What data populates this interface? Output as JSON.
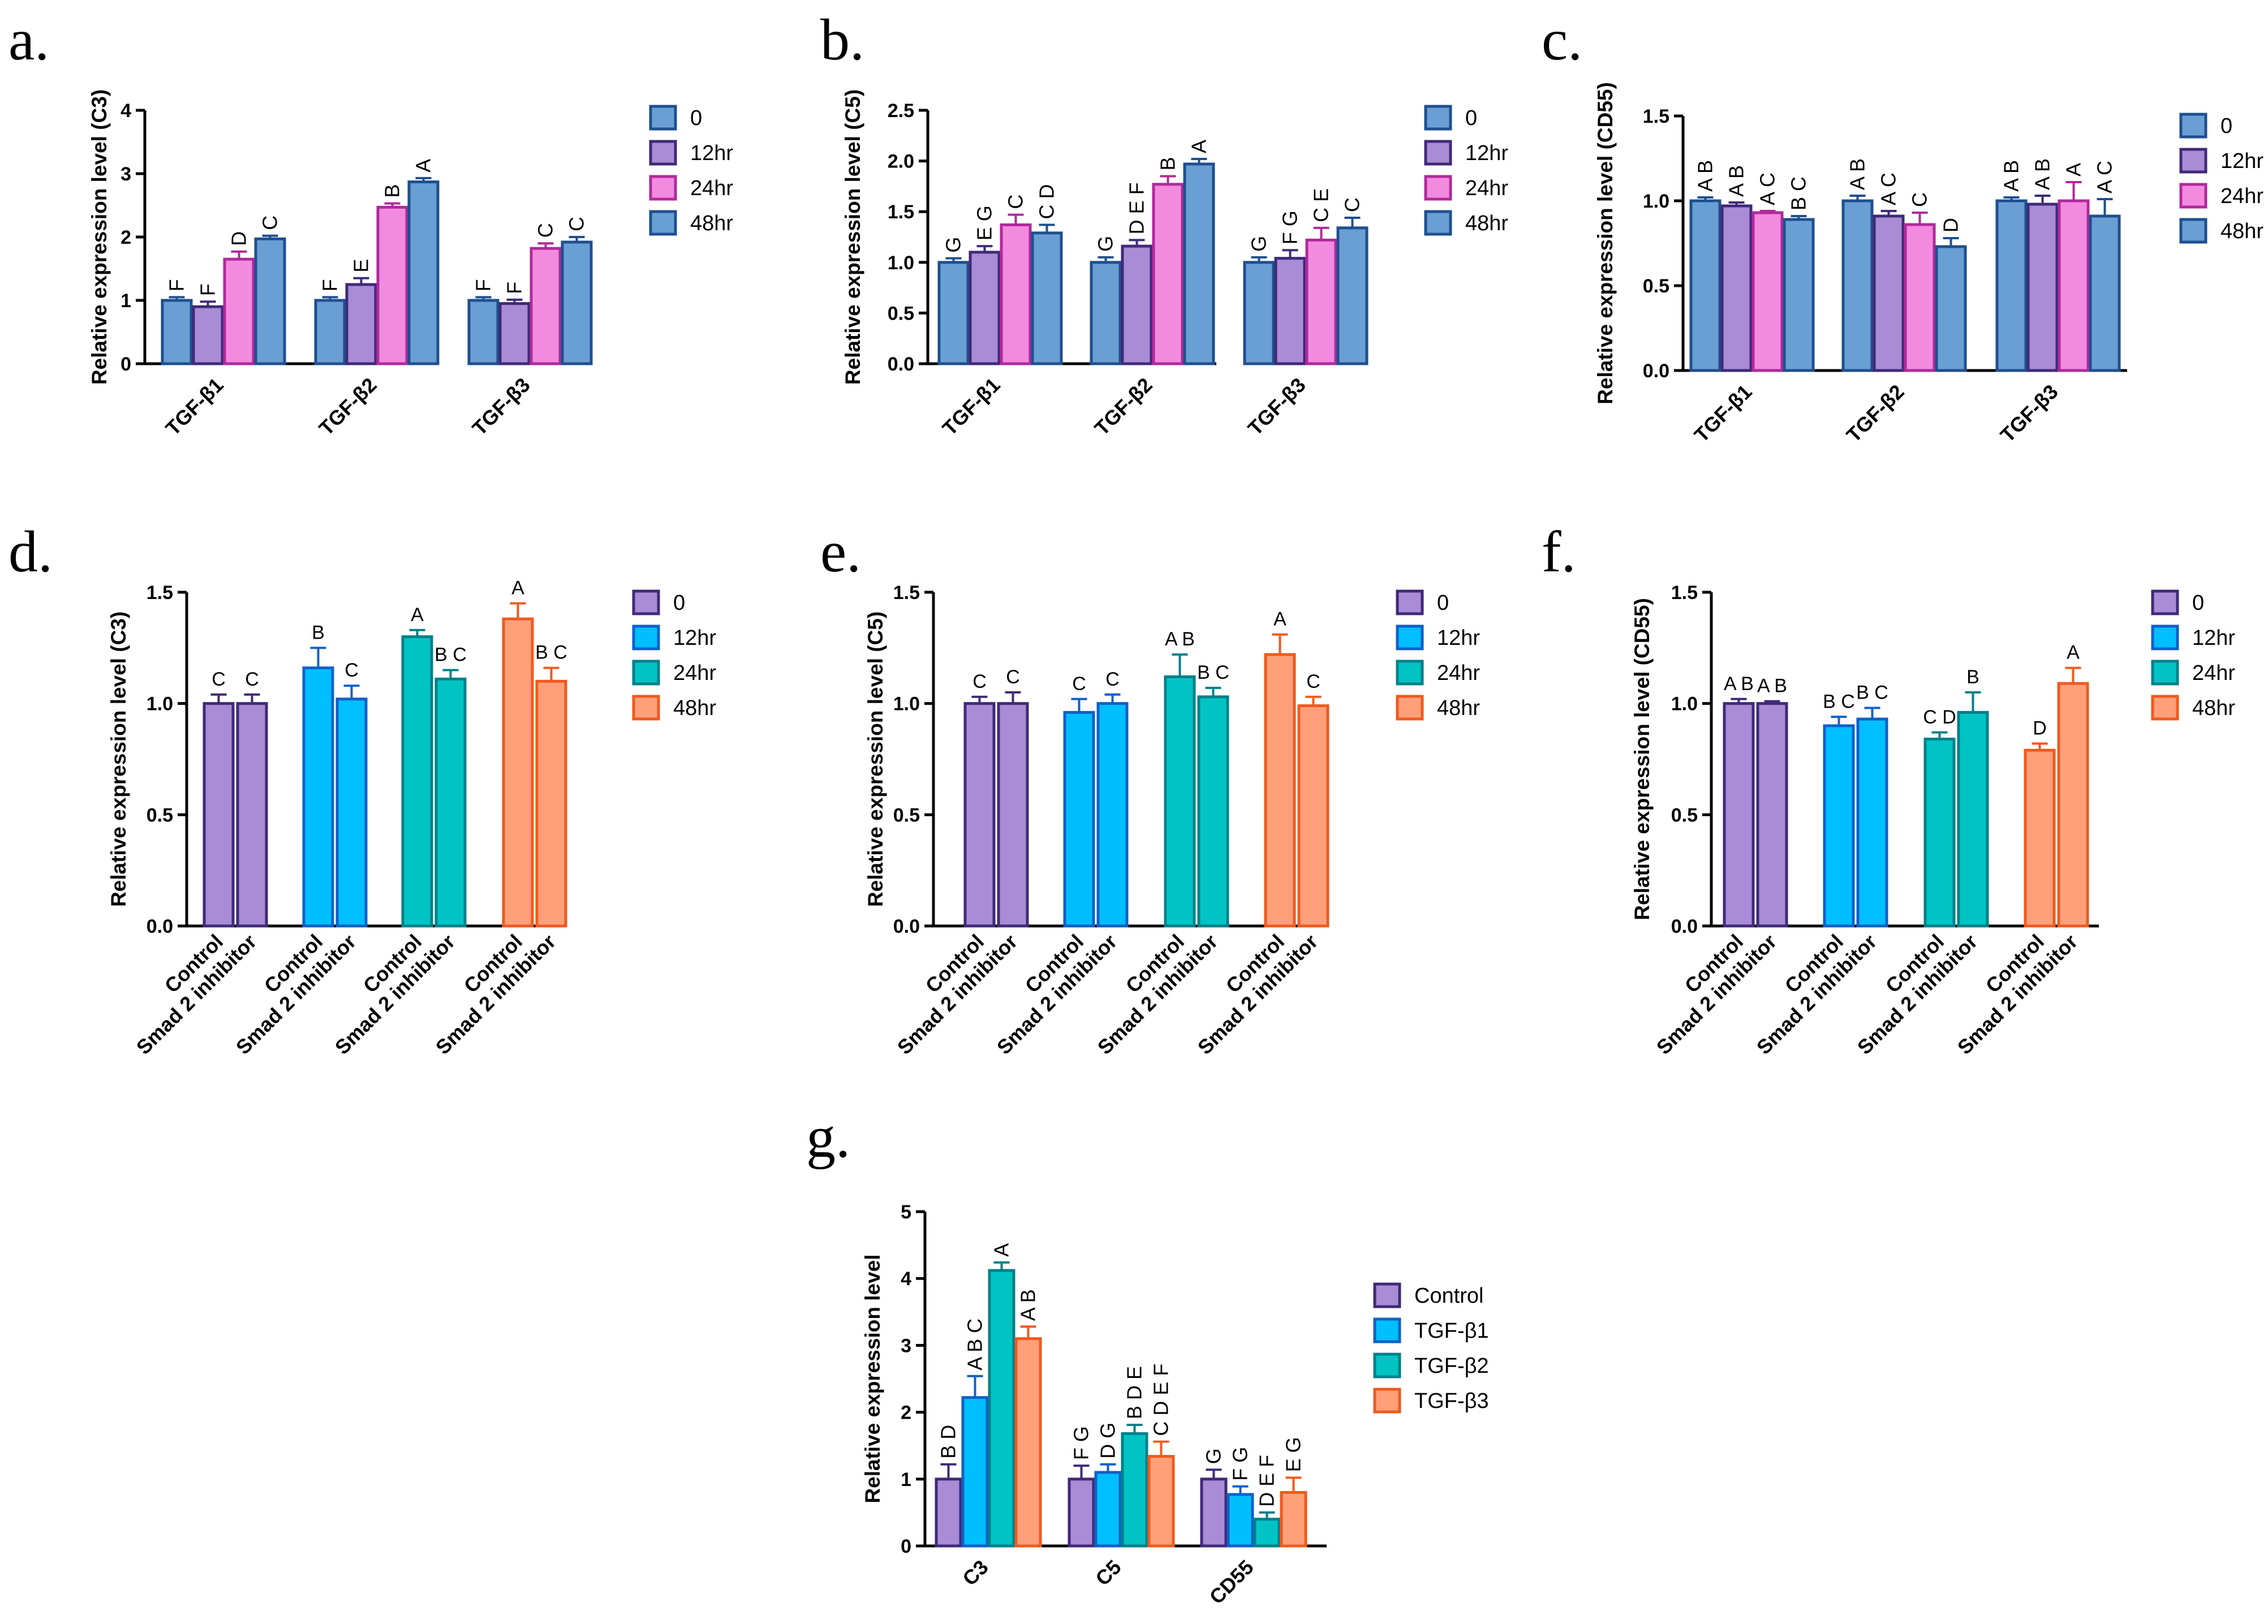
{
  "chart_data": [
    {
      "id": "a",
      "panel_label": "a.",
      "type": "bar",
      "ylabel": "Relative expression level (C3)",
      "ylim": [
        0,
        4
      ],
      "yticks": [
        "0",
        "1",
        "2",
        "3",
        "4"
      ],
      "categories": [
        "TGF-β1",
        "TGF-β2",
        "TGF-β3"
      ],
      "series": [
        {
          "name": "0",
          "color": "#6a9fd4",
          "edge": "#1e4f8f",
          "values": [
            1.0,
            1.0,
            1.0
          ],
          "errors": [
            0.05,
            0.05,
            0.05
          ],
          "labels": [
            "F",
            "F",
            "F"
          ]
        },
        {
          "name": "12hr",
          "color": "#a98bd6",
          "edge": "#3f2a78",
          "values": [
            0.9,
            1.25,
            0.95
          ],
          "errors": [
            0.08,
            0.1,
            0.06
          ],
          "labels": [
            "F",
            "E",
            "F"
          ]
        },
        {
          "name": "24hr",
          "color": "#f28be0",
          "edge": "#b02a9a",
          "values": [
            1.65,
            2.47,
            1.82
          ],
          "errors": [
            0.12,
            0.06,
            0.08
          ],
          "labels": [
            "D",
            "B",
            "C"
          ]
        },
        {
          "name": "48hr",
          "color": "#6a9fd4",
          "edge": "#1e4f8f",
          "values": [
            1.97,
            2.87,
            1.92
          ],
          "errors": [
            0.05,
            0.06,
            0.08
          ],
          "labels": [
            "C",
            "A",
            "C"
          ]
        }
      ]
    },
    {
      "id": "b",
      "panel_label": "b.",
      "type": "bar",
      "ylabel": "Relative expression level (C5)",
      "ylim": [
        0,
        2.5
      ],
      "yticks": [
        "0.0",
        "0.5",
        "1.0",
        "1.5",
        "2.0",
        "2.5"
      ],
      "categories": [
        "TGF-β1",
        "TGF-β2",
        "TGF-β3"
      ],
      "series": [
        {
          "name": "0",
          "color": "#6a9fd4",
          "edge": "#1e4f8f",
          "values": [
            1.0,
            1.0,
            1.0
          ],
          "errors": [
            0.04,
            0.05,
            0.05
          ],
          "labels": [
            "G",
            "G",
            "G"
          ]
        },
        {
          "name": "12hr",
          "color": "#a98bd6",
          "edge": "#3f2a78",
          "values": [
            1.1,
            1.16,
            1.04
          ],
          "errors": [
            0.06,
            0.06,
            0.08
          ],
          "labels": [
            "E G",
            "D E F",
            "F G"
          ]
        },
        {
          "name": "24hr",
          "color": "#f28be0",
          "edge": "#b02a9a",
          "values": [
            1.37,
            1.77,
            1.22
          ],
          "errors": [
            0.1,
            0.08,
            0.12
          ],
          "labels": [
            "C",
            "B",
            "C E"
          ]
        },
        {
          "name": "48hr",
          "color": "#6a9fd4",
          "edge": "#1e4f8f",
          "values": [
            1.29,
            1.97,
            1.34
          ],
          "errors": [
            0.08,
            0.05,
            0.1
          ],
          "labels": [
            "C D",
            "A",
            "C"
          ]
        }
      ]
    },
    {
      "id": "c",
      "panel_label": "c.",
      "type": "bar",
      "ylabel": "Relative expression level (CD55)",
      "ylim": [
        0,
        1.5
      ],
      "yticks": [
        "0.0",
        "0.5",
        "1.0",
        "1.5"
      ],
      "categories": [
        "TGF-β1",
        "TGF-β2",
        "TGF-β3"
      ],
      "series": [
        {
          "name": "0",
          "color": "#6a9fd4",
          "edge": "#1e4f8f",
          "values": [
            1.0,
            1.0,
            1.0
          ],
          "errors": [
            0.02,
            0.03,
            0.02
          ],
          "labels": [
            "A B",
            "A B",
            "A B"
          ]
        },
        {
          "name": "12hr",
          "color": "#a98bd6",
          "edge": "#3f2a78",
          "values": [
            0.97,
            0.91,
            0.98
          ],
          "errors": [
            0.02,
            0.03,
            0.05
          ],
          "labels": [
            "A B",
            "A C",
            "A B"
          ]
        },
        {
          "name": "24hr",
          "color": "#f28be0",
          "edge": "#b02a9a",
          "values": [
            0.93,
            0.86,
            1.0
          ],
          "errors": [
            0.01,
            0.07,
            0.11
          ],
          "labels": [
            "A C",
            "C",
            "A"
          ]
        },
        {
          "name": "48hr",
          "color": "#6a9fd4",
          "edge": "#1e4f8f",
          "values": [
            0.89,
            0.73,
            0.91
          ],
          "errors": [
            0.02,
            0.05,
            0.1
          ],
          "labels": [
            "B C",
            "D",
            "A C"
          ]
        }
      ]
    },
    {
      "id": "d",
      "panel_label": "d.",
      "type": "bar",
      "ylabel": "Relative expression level (C3)",
      "ylim": [
        0,
        1.5
      ],
      "yticks": [
        "0.0",
        "0.5",
        "1.0",
        "1.5"
      ],
      "legend": [
        "0",
        "12hr",
        "24hr",
        "48hr"
      ],
      "groups": [
        {
          "color": "#a98bd6",
          "edge": "#3f2a78",
          "categories": [
            "Control",
            "Smad 2 inhibitor"
          ],
          "values": [
            1.0,
            1.0
          ],
          "errors": [
            0.04,
            0.04
          ],
          "labels": [
            "C",
            "C"
          ]
        },
        {
          "color": "#00bfff",
          "edge": "#1060c8",
          "categories": [
            "Control",
            "Smad 2 inhibitor"
          ],
          "values": [
            1.16,
            1.02
          ],
          "errors": [
            0.09,
            0.06
          ],
          "labels": [
            "B",
            "C"
          ]
        },
        {
          "color": "#00c4c4",
          "edge": "#00808a",
          "categories": [
            "Control",
            "Smad 2 inhibitor"
          ],
          "values": [
            1.3,
            1.11
          ],
          "errors": [
            0.03,
            0.04
          ],
          "labels": [
            "A",
            "B C"
          ]
        },
        {
          "color": "#ffa07a",
          "edge": "#f05a1e",
          "categories": [
            "Control",
            "Smad 2 inhibitor"
          ],
          "values": [
            1.38,
            1.1
          ],
          "errors": [
            0.07,
            0.06
          ],
          "labels": [
            "A",
            "B C"
          ]
        }
      ]
    },
    {
      "id": "e",
      "panel_label": "e.",
      "type": "bar",
      "ylabel": "Relative expression level (C5)",
      "ylim": [
        0,
        1.5
      ],
      "yticks": [
        "0.0",
        "0.5",
        "1.0",
        "1.5"
      ],
      "legend": [
        "0",
        "12hr",
        "24hr",
        "48hr"
      ],
      "groups": [
        {
          "color": "#a98bd6",
          "edge": "#3f2a78",
          "categories": [
            "Control",
            "Smad 2 inhibitor"
          ],
          "values": [
            1.0,
            1.0
          ],
          "errors": [
            0.03,
            0.05
          ],
          "labels": [
            "C",
            "C"
          ]
        },
        {
          "color": "#00bfff",
          "edge": "#1060c8",
          "categories": [
            "Control",
            "Smad 2 inhibitor"
          ],
          "values": [
            0.96,
            1.0
          ],
          "errors": [
            0.06,
            0.04
          ],
          "labels": [
            "C",
            "C"
          ]
        },
        {
          "color": "#00c4c4",
          "edge": "#00808a",
          "categories": [
            "Control",
            "Smad 2 inhibitor"
          ],
          "values": [
            1.12,
            1.03
          ],
          "errors": [
            0.1,
            0.04
          ],
          "labels": [
            "A B",
            "B C"
          ]
        },
        {
          "color": "#ffa07a",
          "edge": "#f05a1e",
          "categories": [
            "Control",
            "Smad 2 inhibitor"
          ],
          "values": [
            1.22,
            0.99
          ],
          "errors": [
            0.09,
            0.04
          ],
          "labels": [
            "A",
            "C"
          ]
        }
      ]
    },
    {
      "id": "f",
      "panel_label": "f.",
      "type": "bar",
      "ylabel": "Relative expression level (CD55)",
      "ylim": [
        0,
        1.5
      ],
      "yticks": [
        "0.0",
        "0.5",
        "1.0",
        "1.5"
      ],
      "legend": [
        "0",
        "12hr",
        "24hr",
        "48hr"
      ],
      "groups": [
        {
          "color": "#a98bd6",
          "edge": "#3f2a78",
          "categories": [
            "Control",
            "Smad 2 inhibitor"
          ],
          "values": [
            1.0,
            1.0
          ],
          "errors": [
            0.02,
            0.01
          ],
          "labels": [
            "A B",
            "A B"
          ]
        },
        {
          "color": "#00bfff",
          "edge": "#1060c8",
          "categories": [
            "Control",
            "Smad 2 inhibitor"
          ],
          "values": [
            0.9,
            0.93
          ],
          "errors": [
            0.04,
            0.05
          ],
          "labels": [
            "B C",
            "B C"
          ]
        },
        {
          "color": "#00c4c4",
          "edge": "#00808a",
          "categories": [
            "Control",
            "Smad 2 inhibitor"
          ],
          "values": [
            0.84,
            0.96
          ],
          "errors": [
            0.03,
            0.09
          ],
          "labels": [
            "C D",
            "B"
          ]
        },
        {
          "color": "#ffa07a",
          "edge": "#f05a1e",
          "categories": [
            "Control",
            "Smad 2 inhibitor"
          ],
          "values": [
            0.79,
            1.09
          ],
          "errors": [
            0.03,
            0.07
          ],
          "labels": [
            "D",
            "A"
          ]
        }
      ]
    },
    {
      "id": "g",
      "panel_label": "g.",
      "type": "bar",
      "ylabel": "Relative expression level",
      "ylim": [
        0,
        5
      ],
      "yticks": [
        "0",
        "1",
        "2",
        "3",
        "4",
        "5"
      ],
      "categories": [
        "C3",
        "C5",
        "CD55"
      ],
      "series": [
        {
          "name": "Control",
          "color": "#a98bd6",
          "edge": "#3f2a78",
          "values": [
            1.0,
            1.0,
            1.0
          ],
          "errors": [
            0.22,
            0.2,
            0.14
          ],
          "labels": [
            "B D",
            "F G",
            "G"
          ]
        },
        {
          "name": "TGF-β1",
          "color": "#00bfff",
          "edge": "#1060c8",
          "values": [
            2.22,
            1.1,
            0.77
          ],
          "errors": [
            0.32,
            0.12,
            0.12
          ],
          "labels": [
            "A B C",
            "D G",
            "F G"
          ]
        },
        {
          "name": "TGF-β2",
          "color": "#00c4c4",
          "edge": "#00808a",
          "values": [
            4.12,
            1.68,
            0.4
          ],
          "errors": [
            0.12,
            0.13,
            0.1
          ],
          "labels": [
            "A",
            "B D E",
            "D E F"
          ]
        },
        {
          "name": "TGF-β3",
          "color": "#ffa07a",
          "edge": "#f05a1e",
          "values": [
            3.1,
            1.34,
            0.8
          ],
          "errors": [
            0.18,
            0.22,
            0.22
          ],
          "labels": [
            "A B",
            "C D E F",
            "E G"
          ]
        }
      ]
    }
  ]
}
